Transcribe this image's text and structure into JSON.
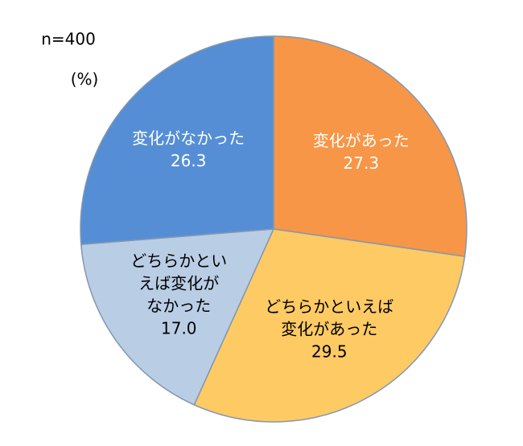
{
  "chart_data": {
    "type": "pie",
    "note": "n=400",
    "unit": "(%)",
    "categories": [
      [
        "変化があった"
      ],
      [
        "どちらかといえば",
        "変化があった"
      ],
      [
        "どちらかとい",
        "えば変化が",
        "なかった"
      ],
      [
        "変化がなかった"
      ]
    ],
    "values": [
      27.3,
      29.5,
      17,
      26.3
    ],
    "value_labels": [
      "27.3",
      "29.5",
      "17.0",
      "26.3"
    ],
    "colors": [
      "#f79646",
      "#fdca64",
      "#b9cde5",
      "#558ed5"
    ],
    "label_colors": [
      "#ffffff",
      "#000000",
      "#000000",
      "#ffffff"
    ]
  }
}
